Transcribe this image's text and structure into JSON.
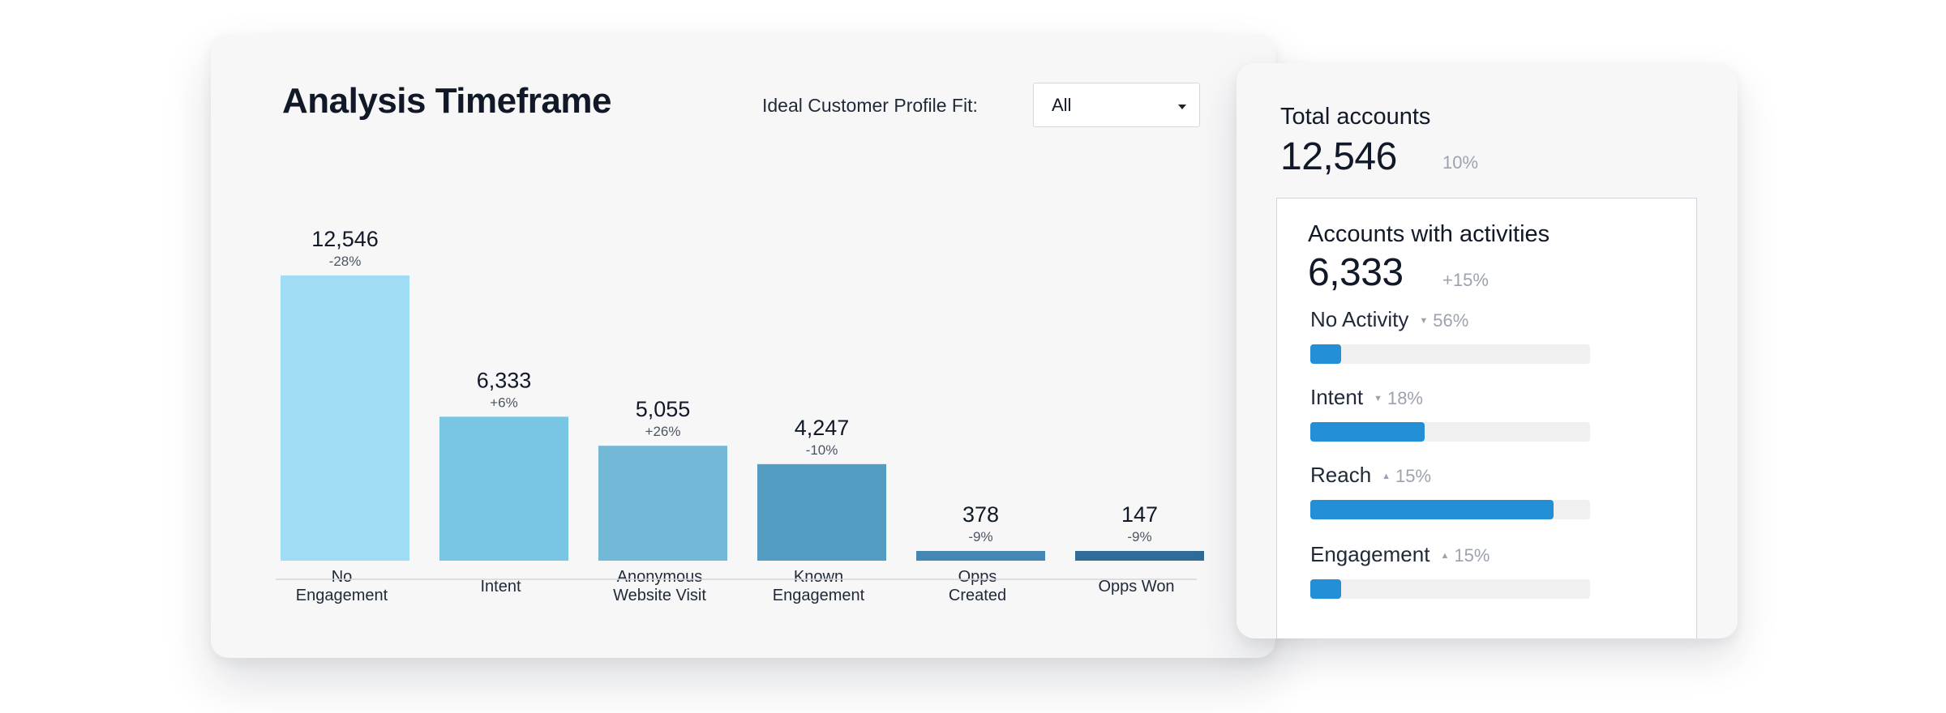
{
  "main_card": {
    "title": "Analysis Timeframe",
    "filter_label": "Ideal Customer Profile Fit:",
    "filter_value": "All"
  },
  "chart_data": {
    "type": "bar",
    "categories": [
      [
        "No",
        "Engagement"
      ],
      [
        "Intent"
      ],
      [
        "Anonymous",
        "Website Visit"
      ],
      [
        "Known",
        "Engagement"
      ],
      [
        "Opps",
        "Created"
      ],
      [
        "Opps Won"
      ]
    ],
    "value_labels": [
      "12,546",
      "6,333",
      "5,055",
      "4,247",
      "378",
      "147"
    ],
    "values": [
      12546,
      6333,
      5055,
      4247,
      378,
      147
    ],
    "changes": [
      "-28%",
      "+6%",
      "+26%",
      "-10%",
      "-9%",
      "-9%"
    ],
    "colors": [
      "#a1dcf5",
      "#78c6e4",
      "#74b8d8",
      "#539dc2",
      "#4587b3",
      "#2f6d98"
    ],
    "title": "",
    "xlabel": "",
    "ylabel": "",
    "grid": false
  },
  "side_card": {
    "total_label": "Total accounts",
    "total_value": "12,546",
    "total_change": "10%",
    "activities": {
      "label": "Accounts with activities",
      "value": "6,333",
      "change": "+15%"
    },
    "metrics": [
      {
        "name": "No Activity",
        "arrow": "▼",
        "arrow_icon": "triangle-down-icon",
        "pct": "56%",
        "fill": 0.11
      },
      {
        "name": "Intent",
        "arrow": "▼",
        "arrow_icon": "triangle-down-icon",
        "pct": "18%",
        "fill": 0.41
      },
      {
        "name": "Reach",
        "arrow": "▲",
        "arrow_icon": "triangle-up-icon",
        "pct": "15%",
        "fill": 0.87
      },
      {
        "name": "Engagement",
        "arrow": "▲",
        "arrow_icon": "triangle-up-icon",
        "pct": "15%",
        "fill": 0.11
      }
    ],
    "bar_color": "#238fd6"
  }
}
